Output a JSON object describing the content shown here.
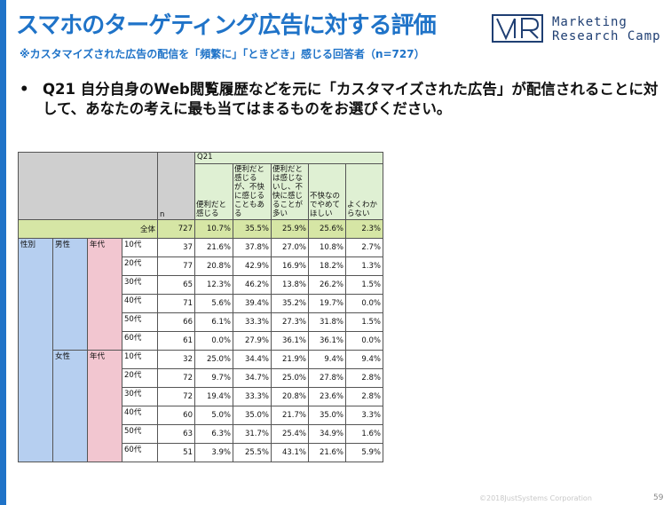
{
  "header": {
    "title": "スマホのターゲティング広告に対する評価",
    "subtitle": "※カスタマイズされた広告の配信を「頻繁に」「ときどき」感じる回答者（n=727）",
    "brand_line1": "Marketing",
    "brand_line2": "Research Camp"
  },
  "question": {
    "bullet": "•",
    "text": "Q21 自分自身のWeb閲覧履歴などを元に「カスタマイズされた広告」が配信されることに対して、あなたの考えに最も当てはまるものをお選びください。"
  },
  "table": {
    "q_label": "Q21",
    "n_label": "n",
    "headers": [
      "便利だと感じる",
      "便利だと感じるが、不快に感じることもある",
      "便利だとは感じないし、不快に感じることが多い",
      "不快なのでやめてほしい",
      "よくわからない"
    ],
    "total": {
      "label": "全体",
      "n": "727",
      "values": [
        "10.7%",
        "35.5%",
        "25.9%",
        "25.6%",
        "2.3%"
      ]
    },
    "group_label": "性別",
    "age_label": "年代",
    "genders": [
      {
        "label": "男性",
        "rows": [
          {
            "age": "10代",
            "n": "37",
            "values": [
              "21.6%",
              "37.8%",
              "27.0%",
              "10.8%",
              "2.7%"
            ]
          },
          {
            "age": "20代",
            "n": "77",
            "values": [
              "20.8%",
              "42.9%",
              "16.9%",
              "18.2%",
              "1.3%"
            ]
          },
          {
            "age": "30代",
            "n": "65",
            "values": [
              "12.3%",
              "46.2%",
              "13.8%",
              "26.2%",
              "1.5%"
            ]
          },
          {
            "age": "40代",
            "n": "71",
            "values": [
              "5.6%",
              "39.4%",
              "35.2%",
              "19.7%",
              "0.0%"
            ]
          },
          {
            "age": "50代",
            "n": "66",
            "values": [
              "6.1%",
              "33.3%",
              "27.3%",
              "31.8%",
              "1.5%"
            ]
          },
          {
            "age": "60代",
            "n": "61",
            "values": [
              "0.0%",
              "27.9%",
              "36.1%",
              "36.1%",
              "0.0%"
            ]
          }
        ]
      },
      {
        "label": "女性",
        "rows": [
          {
            "age": "10代",
            "n": "32",
            "values": [
              "25.0%",
              "34.4%",
              "21.9%",
              "9.4%",
              "9.4%"
            ]
          },
          {
            "age": "20代",
            "n": "72",
            "values": [
              "9.7%",
              "34.7%",
              "25.0%",
              "27.8%",
              "2.8%"
            ]
          },
          {
            "age": "30代",
            "n": "72",
            "values": [
              "19.4%",
              "33.3%",
              "20.8%",
              "23.6%",
              "2.8%"
            ]
          },
          {
            "age": "40代",
            "n": "60",
            "values": [
              "5.0%",
              "35.0%",
              "21.7%",
              "35.0%",
              "3.3%"
            ]
          },
          {
            "age": "50代",
            "n": "63",
            "values": [
              "6.3%",
              "31.7%",
              "25.4%",
              "34.9%",
              "1.6%"
            ]
          },
          {
            "age": "60代",
            "n": "51",
            "values": [
              "3.9%",
              "25.5%",
              "43.1%",
              "21.6%",
              "5.9%"
            ]
          }
        ]
      }
    ]
  },
  "footer": {
    "copyright": "©2018JustSystems Corporation",
    "page": "59"
  },
  "colors": {
    "accent": "#1f73c8",
    "total_row": "#d6e6a5",
    "header_green": "#dff0d3",
    "gender_blue": "#b6cff0",
    "age_pink": "#f2c6d0"
  }
}
